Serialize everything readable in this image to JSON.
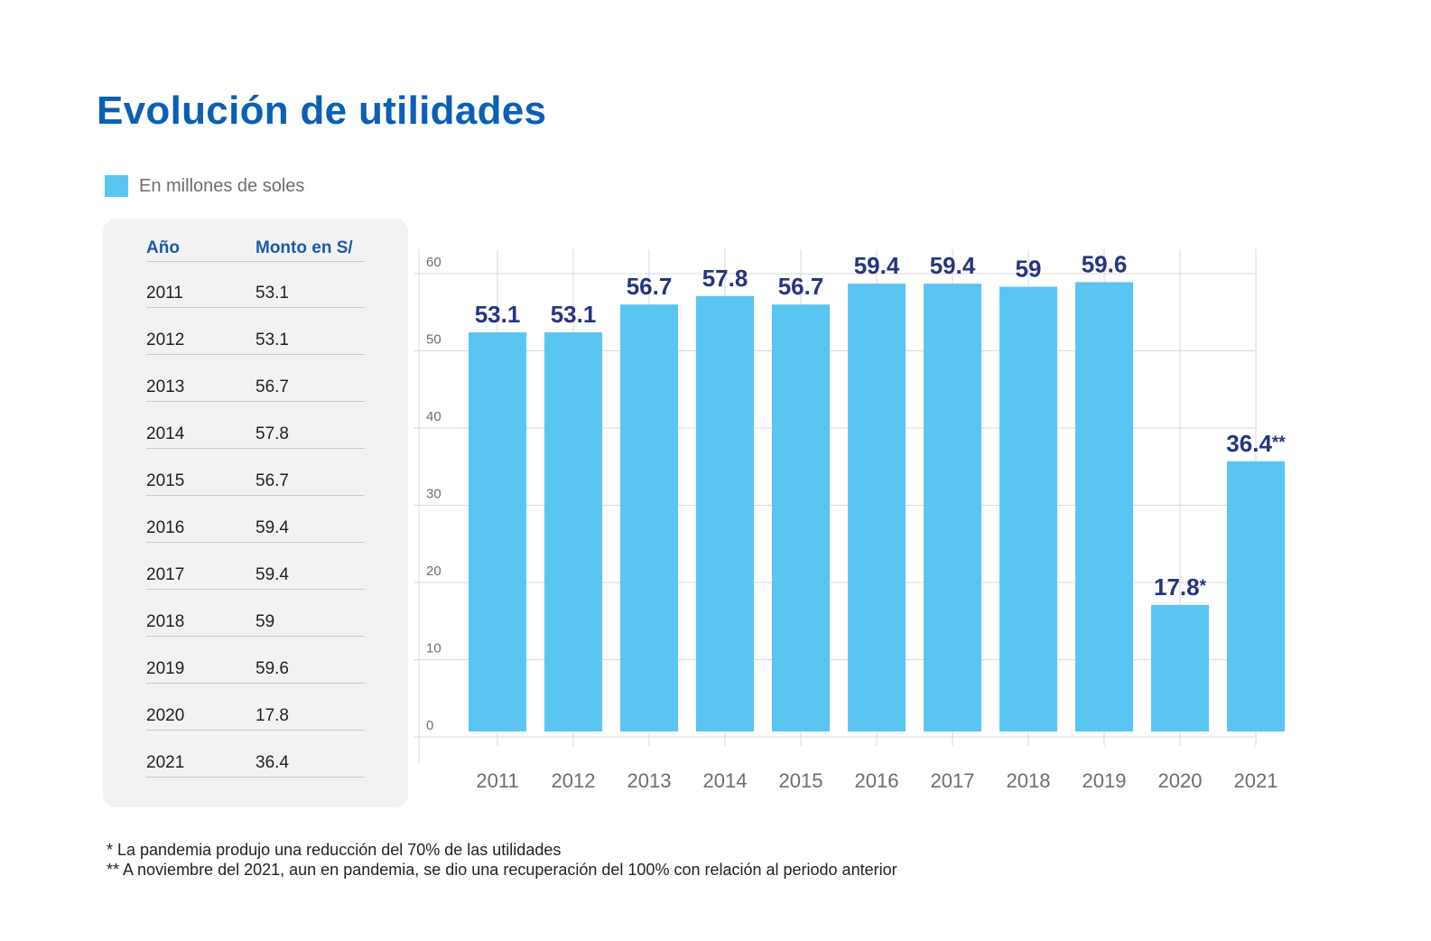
{
  "title": "Evolución de utilidades",
  "legend": {
    "label": "En millones de soles",
    "color": "#5bc5f2"
  },
  "table": {
    "headers": {
      "year": "Año",
      "amount": "Monto en S/"
    },
    "rows": [
      {
        "year": "2011",
        "amount": "53.1"
      },
      {
        "year": "2012",
        "amount": "53.1"
      },
      {
        "year": "2013",
        "amount": "56.7"
      },
      {
        "year": "2014",
        "amount": "57.8"
      },
      {
        "year": "2015",
        "amount": "56.7"
      },
      {
        "year": "2016",
        "amount": "59.4"
      },
      {
        "year": "2017",
        "amount": "59.4"
      },
      {
        "year": "2018",
        "amount": "59"
      },
      {
        "year": "2019",
        "amount": "59.6"
      },
      {
        "year": "2020",
        "amount": "17.8"
      },
      {
        "year": "2021",
        "amount": "36.4"
      }
    ]
  },
  "chart_data": {
    "type": "bar",
    "categories": [
      "2011",
      "2012",
      "2013",
      "2014",
      "2015",
      "2016",
      "2017",
      "2018",
      "2019",
      "2020",
      "2021"
    ],
    "values": [
      53.1,
      53.1,
      56.7,
      57.8,
      56.7,
      59.4,
      59.4,
      59,
      59.6,
      17.8,
      36.4
    ],
    "value_labels": [
      "53.1",
      "53.1",
      "56.7",
      "57.8",
      "56.7",
      "59.4",
      "59.4",
      "59",
      "59.6",
      "17.8*",
      "36.4**"
    ],
    "yticks": [
      0,
      10,
      20,
      30,
      40,
      50,
      60
    ],
    "ylim": [
      0,
      60
    ],
    "grid": true,
    "bar_color": "#5bc5f2",
    "label_color": "#263482",
    "tick_color": "#6e6e6e",
    "grid_color": "#d9d9d9"
  },
  "footnotes": [
    "* La pandemia produjo una reducción del 70% de las utilidades",
    "** A noviembre del 2021, aun en pandemia, se dio una recuperación del 100% con relación al periodo anterior"
  ]
}
